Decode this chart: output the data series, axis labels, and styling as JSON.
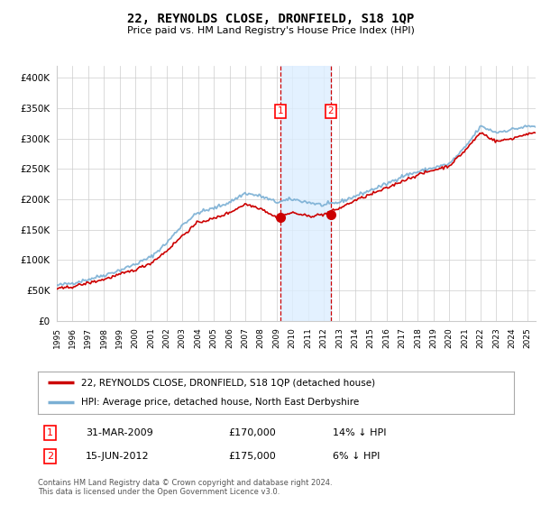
{
  "title": "22, REYNOLDS CLOSE, DRONFIELD, S18 1QP",
  "subtitle": "Price paid vs. HM Land Registry's House Price Index (HPI)",
  "ylabel_ticks": [
    "£0",
    "£50K",
    "£100K",
    "£150K",
    "£200K",
    "£250K",
    "£300K",
    "£350K",
    "£400K"
  ],
  "ylim": [
    0,
    420000
  ],
  "xlim_start": 1995.0,
  "xlim_end": 2025.5,
  "sale1_date": 2009.25,
  "sale1_price": 170000,
  "sale1_label": "1",
  "sale2_date": 2012.46,
  "sale2_price": 175000,
  "sale2_label": "2",
  "property_color": "#cc0000",
  "hpi_color": "#7aafd4",
  "shade_color": "#ddeeff",
  "grid_color": "#cccccc",
  "legend_property": "22, REYNOLDS CLOSE, DRONFIELD, S18 1QP (detached house)",
  "legend_hpi": "HPI: Average price, detached house, North East Derbyshire",
  "table_row1": [
    "1",
    "31-MAR-2009",
    "£170,000",
    "14% ↓ HPI"
  ],
  "table_row2": [
    "2",
    "15-JUN-2012",
    "£175,000",
    "6% ↓ HPI"
  ],
  "footer": "Contains HM Land Registry data © Crown copyright and database right 2024.\nThis data is licensed under the Open Government Licence v3.0.",
  "bg_color": "#ffffff"
}
